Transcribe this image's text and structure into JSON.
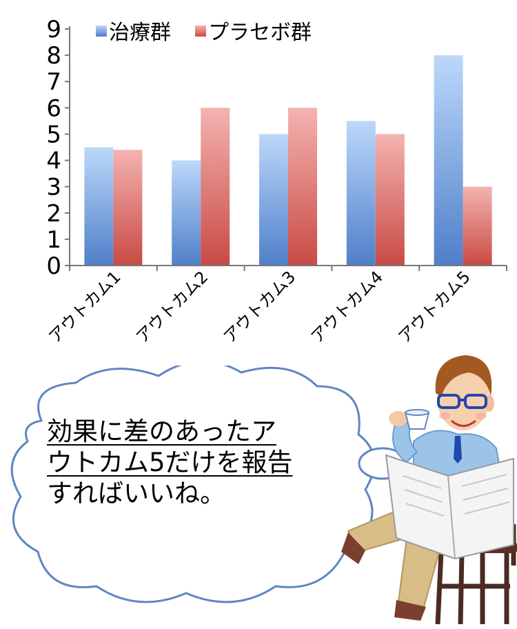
{
  "chart_data": {
    "type": "bar",
    "categories": [
      "アウトカム1",
      "アウトカム2",
      "アウトカム3",
      "アウトカム4",
      "アウトカム5"
    ],
    "series": [
      {
        "name": "治療群",
        "values": [
          4.5,
          4.0,
          5.0,
          5.5,
          8.0
        ],
        "color": "#5b8fd6"
      },
      {
        "name": "プラセボ群",
        "values": [
          4.4,
          6.0,
          6.0,
          5.0,
          3.0
        ],
        "color": "#d45b52"
      }
    ],
    "ylim": [
      0,
      9
    ],
    "yticks": [
      0,
      1,
      2,
      3,
      4,
      5,
      6,
      7,
      8,
      9
    ],
    "grid": false,
    "legend": "top-left",
    "title": "",
    "xlabel": "",
    "ylabel": ""
  },
  "bubble": {
    "line1": "効果に差のあったア",
    "line2": "ウトカム5だけを報告",
    "line3": "すればいいね。"
  }
}
